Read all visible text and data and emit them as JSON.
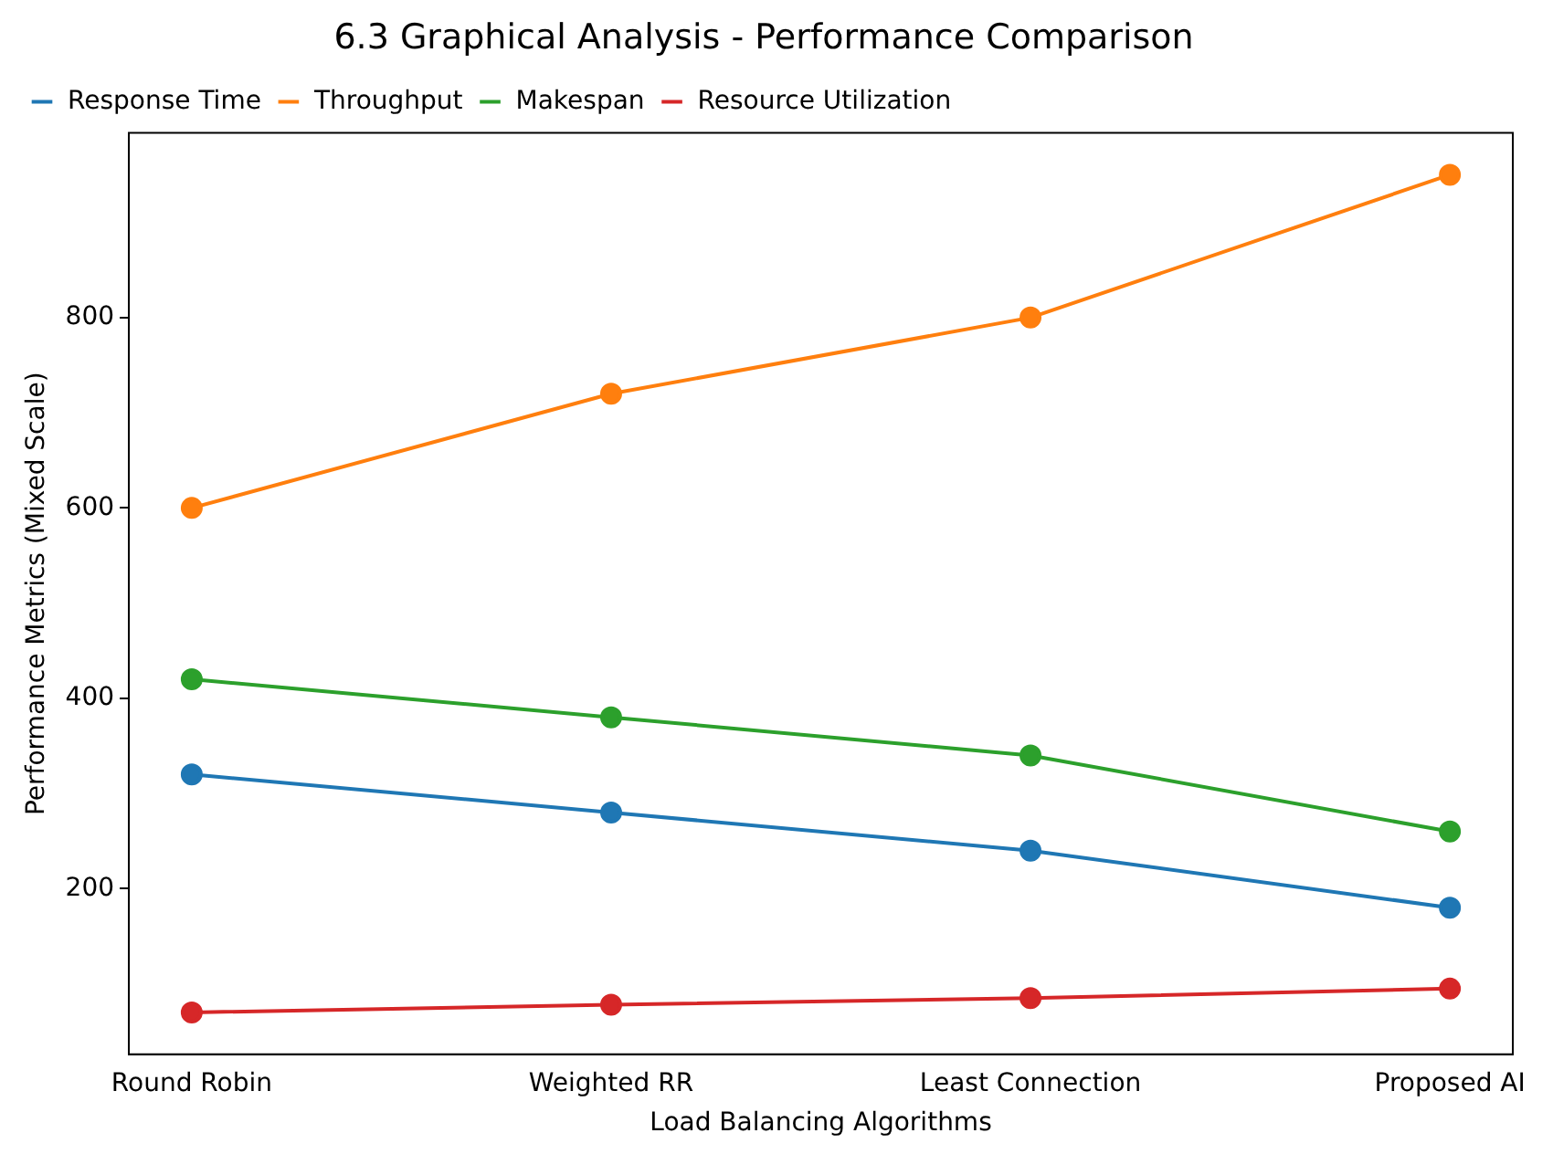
{
  "chart_data": {
    "type": "line",
    "title": "6.3 Graphical Analysis - Performance Comparison",
    "xlabel": "Load Balancing Algorithms",
    "ylabel": "Performance Metrics (Mixed Scale)",
    "categories": [
      "Round Robin",
      "Weighted RR",
      "Least Connection",
      "Proposed AI"
    ],
    "series": [
      {
        "name": "Response Time",
        "color": "#1f77b4",
        "values": [
          320,
          280,
          240,
          180
        ]
      },
      {
        "name": "Throughput",
        "color": "#ff7f0e",
        "values": [
          600,
          720,
          800,
          950
        ]
      },
      {
        "name": "Makespan",
        "color": "#2ca02c",
        "values": [
          420,
          380,
          340,
          260
        ]
      },
      {
        "name": "Resource Utilization",
        "color": "#d62728",
        "values": [
          70,
          78,
          85,
          95
        ]
      }
    ],
    "ylim": [
      26,
      994
    ],
    "yticks": [
      200,
      400,
      600,
      800
    ],
    "grid": false,
    "legend": "top left",
    "marker": "circle",
    "line_style": "solid"
  }
}
